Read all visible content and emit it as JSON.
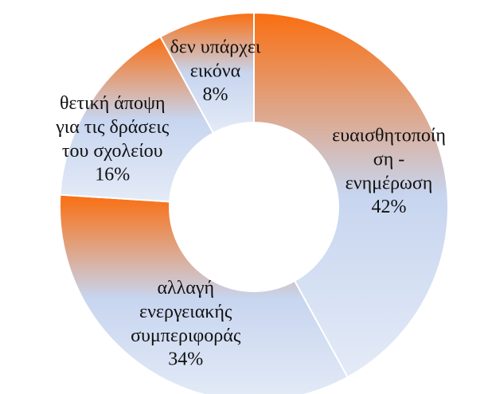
{
  "chart_data": {
    "type": "donut",
    "categories": [
      "ευαισθητοποίη\nση -\nενημέρωση",
      "αλλαγή\nενεργειακής\nσυμπεριφοράς",
      "θετική άποψη\nγια τις δράσεις\nτου σχολείου",
      "δεν υπάρχει\nεικόνα"
    ],
    "values": [
      42,
      34,
      16,
      8
    ],
    "value_labels": [
      "42%",
      "34%",
      "16%",
      "8%"
    ],
    "gradient": [
      "#fa6e10",
      "#c7d5ef",
      "#e4ebf7"
    ]
  }
}
